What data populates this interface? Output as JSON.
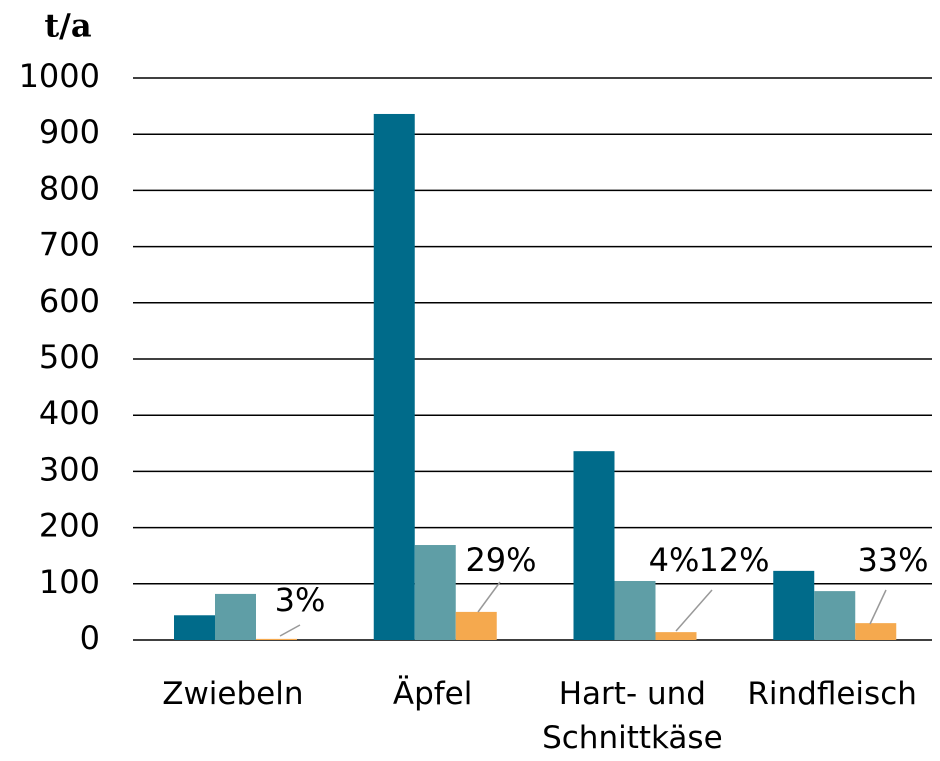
{
  "chart_data": {
    "type": "bar",
    "y_axis_label": "t/a",
    "categories": [
      "Zwiebeln",
      "Äpfel",
      "Hart- und Schnittkäse",
      "Rindfleisch"
    ],
    "series": [
      {
        "color": "#006b8a",
        "values": [
          44,
          936,
          336,
          123
        ]
      },
      {
        "color": "#5f9ea6",
        "values": [
          82,
          169,
          105,
          87
        ]
      },
      {
        "color": "#f5a94e",
        "values": [
          2,
          50,
          14,
          30
        ]
      }
    ],
    "annotations": [
      "3%",
      "29%",
      "4%",
      "12%",
      "33%"
    ],
    "ylim": [
      0,
      1000
    ],
    "yticks": [
      0,
      100,
      200,
      300,
      400,
      500,
      600,
      700,
      800,
      900,
      1000
    ],
    "grid": true
  }
}
